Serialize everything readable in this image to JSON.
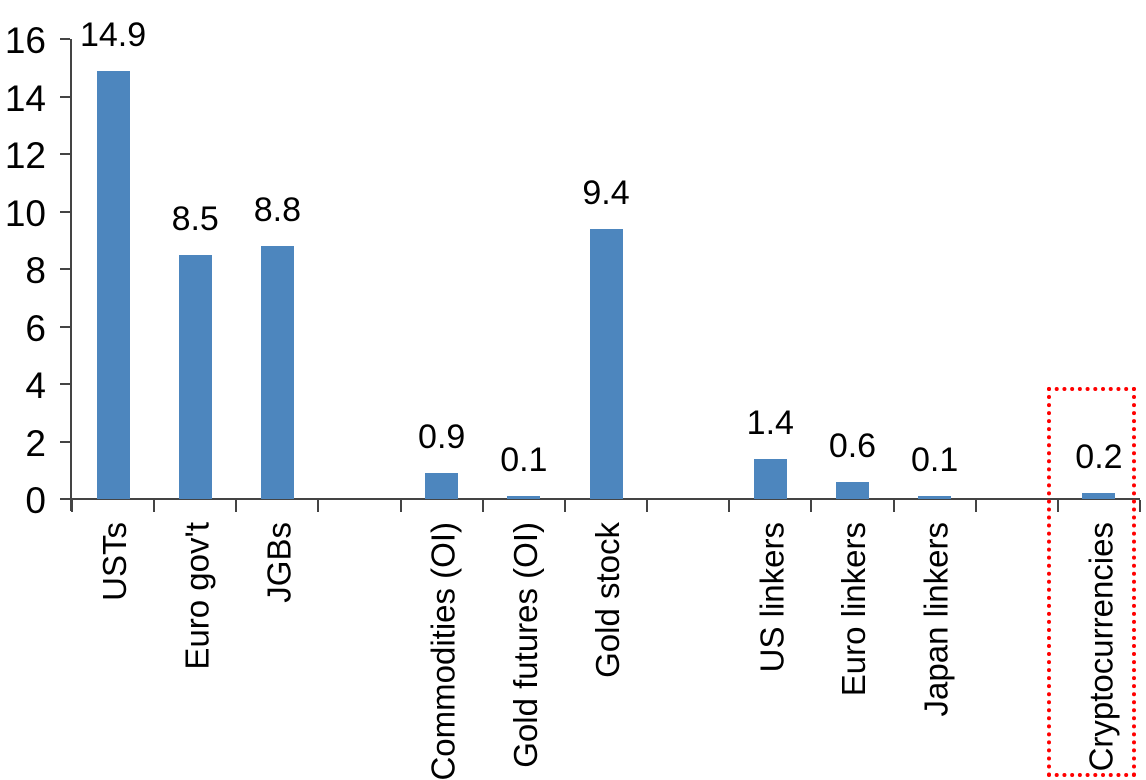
{
  "chart_data": {
    "type": "bar",
    "title": "",
    "xlabel": "",
    "ylabel": "",
    "categories": [
      "USTs",
      "Euro gov't",
      "JGBs",
      "",
      "Commodities (OI)",
      "Gold futures (OI)",
      "Gold stock",
      "",
      "US linkers",
      "Euro linkers",
      "Japan linkers",
      "",
      "Cryptocurrencies"
    ],
    "values": [
      14.9,
      8.5,
      8.8,
      null,
      0.9,
      0.1,
      9.4,
      null,
      1.4,
      0.6,
      0.1,
      null,
      0.2
    ],
    "data_labels": [
      "14.9",
      "8.5",
      "8.8",
      "",
      "0.9",
      "0.1",
      "9.4",
      "",
      "1.4",
      "0.6",
      "0.1",
      "",
      "0.2"
    ],
    "y_tick_labels": [
      "0",
      "2",
      "4",
      "6",
      "8",
      "10",
      "12",
      "14",
      "16"
    ],
    "y_ticks": [
      0,
      2,
      4,
      6,
      8,
      10,
      12,
      14,
      16
    ],
    "ylim": [
      0,
      16
    ],
    "grid": false,
    "legend": false,
    "bar_color": "#4D86BE",
    "axis_color": "#444444",
    "text_color": "#000000",
    "highlight": {
      "category": "Cryptocurrencies",
      "style": "red-dotted-box",
      "color": "#FF0000"
    }
  }
}
